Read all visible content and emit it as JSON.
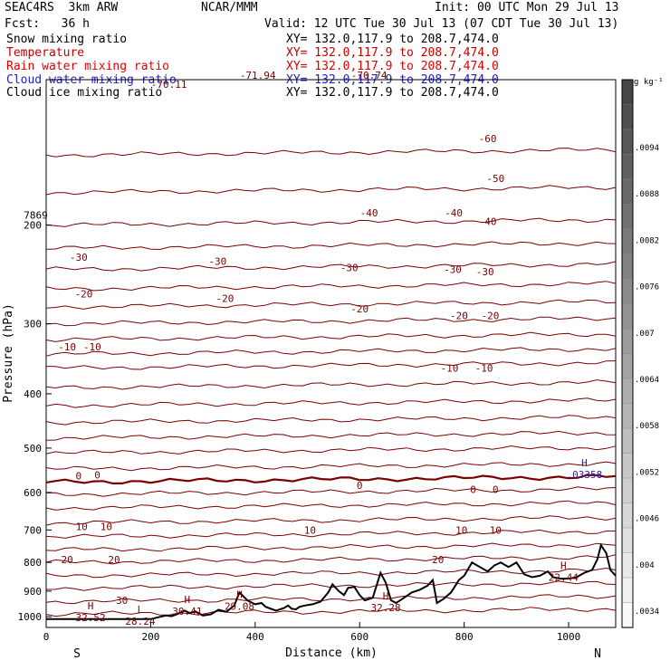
{
  "header": {
    "model": "SEAC4RS  3km ARW",
    "org": "NCAR/MMM",
    "init": "Init: 00 UTC Mon 29 Jul 13",
    "fcst": "Fcst:   36 h",
    "valid": "Valid: 12 UTC Tue 30 Jul 13 (07 CDT Tue 30 Jul 13)"
  },
  "fields": [
    {
      "name": "Snow mixing ratio",
      "xy": "XY= 132.0,117.9 to 208.7,474.0",
      "color": "#000000"
    },
    {
      "name": "Temperature",
      "xy": "XY= 132.0,117.9 to 208.7,474.0",
      "color": "#c00000"
    },
    {
      "name": "Rain water mixing ratio",
      "xy": "XY= 132.0,117.9 to 208.7,474.0",
      "color": "#e00000"
    },
    {
      "name": "Cloud water mixing ratio",
      "xy": "XY= 132.0,117.9 to 208.7,474.0",
      "color": "#2020c0"
    },
    {
      "name": "Cloud ice mixing ratio",
      "xy": "XY= 132.0,117.9 to 208.7,474.0",
      "color": "#000000"
    }
  ],
  "colorbar": {
    "unit": "g kg⁻¹",
    "labels": [
      ".0094",
      ".0088",
      ".0082",
      ".0076",
      ".007",
      ".0064",
      ".0058",
      ".0052",
      ".0046",
      ".004",
      ".0034"
    ]
  },
  "chart_data": {
    "type": "line",
    "title": "",
    "xlabel": "Distance (km)",
    "ylabel": "Pressure (hPa)",
    "x_ticks": [
      0,
      200,
      400,
      600,
      800,
      1000
    ],
    "y_ticks": [
      200,
      300,
      400,
      500,
      600,
      700,
      800,
      900,
      1000
    ],
    "xlim": [
      0,
      1090
    ],
    "ylim": [
      1045,
      110
    ],
    "y_scale": "log",
    "endpoints": {
      "left": "S",
      "right": "N"
    },
    "isotherms": [
      {
        "value": -60,
        "p_left": 140,
        "p_right": 130
      },
      {
        "value": -50,
        "p_left": 165,
        "p_right": 158
      },
      {
        "value": -40,
        "p_left": 193,
        "p_right": 185
      },
      {
        "value": -30,
        "p_left": 228,
        "p_right": 216
      },
      {
        "value": -20,
        "p_left": 268,
        "p_right": 253
      },
      {
        "value": -10,
        "p_left": 314,
        "p_right": 297
      },
      {
        "value": 0,
        "p_left": 370,
        "p_right": 353
      },
      {
        "value": 10,
        "p_left": 438,
        "p_right": 416
      },
      {
        "value": 20,
        "p_left": 513,
        "p_right": 492
      },
      {
        "value": 30,
        "p_left": 612,
        "p_right": 588
      }
    ],
    "isotherm_lines_pressure": [
      150,
      175,
      200,
      220,
      240,
      260,
      280,
      300,
      320,
      340,
      360,
      390,
      420,
      450,
      480,
      510,
      545,
      575,
      605,
      640,
      680,
      720,
      760,
      800,
      845,
      890,
      940,
      990
    ],
    "freezing_level_hPa": 578,
    "contour_labels": [
      {
        "text": "-71.94",
        "x": 405,
        "p": 108
      },
      {
        "text": "-70.74",
        "x": 618,
        "p": 108
      },
      {
        "text": "-70.11",
        "x": 235,
        "p": 112
      },
      {
        "text": "-60",
        "x": 845,
        "p": 140
      },
      {
        "text": "-50",
        "x": 860,
        "p": 165
      },
      {
        "text": "-40",
        "x": 618,
        "p": 190
      },
      {
        "text": "-40",
        "x": 780,
        "p": 190
      },
      {
        "text": "-40",
        "x": 845,
        "p": 197
      },
      {
        "text": "-30",
        "x": 62,
        "p": 228
      },
      {
        "text": "-30",
        "x": 328,
        "p": 232
      },
      {
        "text": "-30",
        "x": 580,
        "p": 238
      },
      {
        "text": "-30",
        "x": 778,
        "p": 240
      },
      {
        "text": "-30",
        "x": 840,
        "p": 242
      },
      {
        "text": "-20",
        "x": 72,
        "p": 265
      },
      {
        "text": "-20",
        "x": 342,
        "p": 270
      },
      {
        "text": "-20",
        "x": 600,
        "p": 282
      },
      {
        "text": "-20",
        "x": 790,
        "p": 290
      },
      {
        "text": "-20",
        "x": 850,
        "p": 290
      },
      {
        "text": "-10",
        "x": 40,
        "p": 330
      },
      {
        "text": "-10",
        "x": 88,
        "p": 330
      },
      {
        "text": "-10",
        "x": 772,
        "p": 360
      },
      {
        "text": "-10",
        "x": 838,
        "p": 360
      },
      {
        "text": "0",
        "x": 62,
        "p": 560
      },
      {
        "text": "0",
        "x": 98,
        "p": 558
      },
      {
        "text": "0",
        "x": 600,
        "p": 583
      },
      {
        "text": "0",
        "x": 817,
        "p": 592
      },
      {
        "text": "0",
        "x": 860,
        "p": 593
      },
      {
        "text": "10",
        "x": 68,
        "p": 690
      },
      {
        "text": "10",
        "x": 115,
        "p": 690
      },
      {
        "text": "10",
        "x": 505,
        "p": 700
      },
      {
        "text": "10",
        "x": 795,
        "p": 700
      },
      {
        "text": "10",
        "x": 860,
        "p": 700
      },
      {
        "text": "20",
        "x": 40,
        "p": 790
      },
      {
        "text": "20",
        "x": 130,
        "p": 790
      },
      {
        "text": "20",
        "x": 750,
        "p": 790
      },
      {
        "text": "30",
        "x": 145,
        "p": 935
      }
    ],
    "extrema": [
      {
        "type": "H",
        "value": "32.52",
        "x": 85,
        "p": 985
      },
      {
        "type": "L",
        "value": "28.24",
        "x": 180,
        "p": 1000
      },
      {
        "type": "H",
        "value": "30.41",
        "x": 270,
        "p": 960
      },
      {
        "type": "H",
        "value": "29.08",
        "x": 370,
        "p": 940
      },
      {
        "type": "H",
        "value": "32.28",
        "x": 650,
        "p": 945
      },
      {
        "type": "H",
        "value": "22.44",
        "x": 990,
        "p": 835
      },
      {
        "type": "H",
        "value": ".03358",
        "x": 1030,
        "p": 547
      }
    ],
    "other_labels": [
      {
        "text": "7869",
        "x": -20,
        "p": 192
      }
    ],
    "terrain": [
      [
        0,
        1010
      ],
      [
        200,
        1010
      ],
      [
        215,
        1002
      ],
      [
        230,
        995
      ],
      [
        240,
        998
      ],
      [
        250,
        990
      ],
      [
        265,
        975
      ],
      [
        275,
        985
      ],
      [
        285,
        978
      ],
      [
        300,
        995
      ],
      [
        315,
        990
      ],
      [
        330,
        972
      ],
      [
        345,
        980
      ],
      [
        360,
        955
      ],
      [
        370,
        905
      ],
      [
        385,
        935
      ],
      [
        400,
        950
      ],
      [
        412,
        945
      ],
      [
        420,
        960
      ],
      [
        440,
        975
      ],
      [
        455,
        965
      ],
      [
        463,
        955
      ],
      [
        470,
        968
      ],
      [
        478,
        970
      ],
      [
        485,
        960
      ],
      [
        495,
        955
      ],
      [
        510,
        950
      ],
      [
        525,
        940
      ],
      [
        540,
        905
      ],
      [
        548,
        875
      ],
      [
        560,
        900
      ],
      [
        570,
        915
      ],
      [
        578,
        888
      ],
      [
        590,
        885
      ],
      [
        600,
        915
      ],
      [
        610,
        935
      ],
      [
        625,
        925
      ],
      [
        640,
        835
      ],
      [
        650,
        870
      ],
      [
        660,
        935
      ],
      [
        670,
        945
      ],
      [
        685,
        925
      ],
      [
        700,
        905
      ],
      [
        715,
        895
      ],
      [
        730,
        880
      ],
      [
        740,
        860
      ],
      [
        748,
        945
      ],
      [
        760,
        930
      ],
      [
        775,
        905
      ],
      [
        790,
        860
      ],
      [
        800,
        845
      ],
      [
        815,
        800
      ],
      [
        830,
        815
      ],
      [
        845,
        830
      ],
      [
        858,
        810
      ],
      [
        870,
        800
      ],
      [
        885,
        815
      ],
      [
        900,
        800
      ],
      [
        915,
        840
      ],
      [
        930,
        850
      ],
      [
        945,
        845
      ],
      [
        960,
        830
      ],
      [
        970,
        850
      ],
      [
        985,
        855
      ],
      [
        1000,
        855
      ],
      [
        1015,
        850
      ],
      [
        1030,
        835
      ],
      [
        1045,
        825
      ],
      [
        1055,
        790
      ],
      [
        1062,
        745
      ],
      [
        1072,
        770
      ],
      [
        1080,
        825
      ],
      [
        1090,
        845
      ]
    ]
  }
}
